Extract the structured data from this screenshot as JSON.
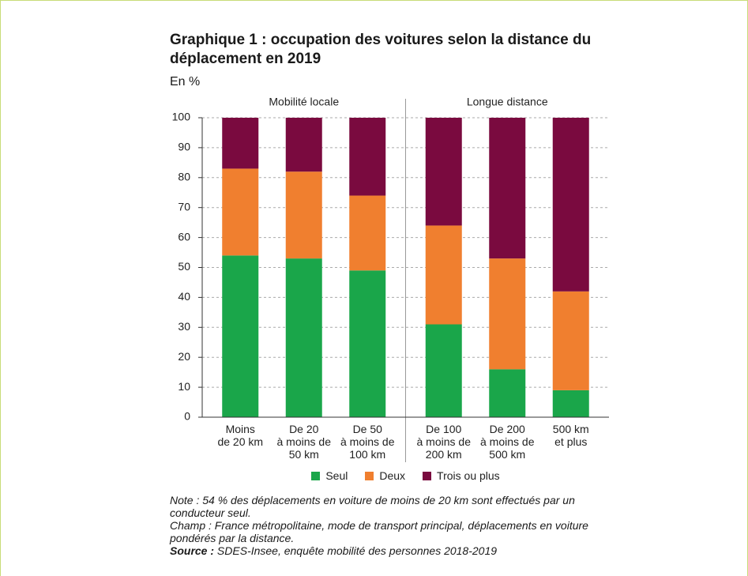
{
  "chart_data": {
    "type": "stacked_bar",
    "title": "Graphique 1 : occupation des voitures selon la distance du déplacement en 2019",
    "subtitle": "En %",
    "groups": [
      {
        "name": "Mobilité locale",
        "size": 3
      },
      {
        "name": "Longue distance",
        "size": 3
      }
    ],
    "categories": [
      "Moins\nde 20 km",
      "De 20\nà moins de\n50 km",
      "De 50\nà moins de\n100 km",
      "De 100\nà moins de\n200 km",
      "De 200\nà moins de\n500 km",
      "500 km\net plus"
    ],
    "series": [
      {
        "name": "Seul",
        "color": "#1aa64a",
        "values": [
          54,
          53,
          49,
          31,
          16,
          9
        ]
      },
      {
        "name": "Deux",
        "color": "#f07f2f",
        "values": [
          29,
          29,
          25,
          33,
          37,
          33
        ]
      },
      {
        "name": "Trois ou plus",
        "color": "#7a0a3f",
        "values": [
          17,
          18,
          26,
          36,
          47,
          58
        ]
      }
    ],
    "ylim": [
      0,
      100
    ],
    "yticks": [
      0,
      10,
      20,
      30,
      40,
      50,
      60,
      70,
      80,
      90,
      100
    ],
    "grid": true,
    "notes": [
      "Note : 54 % des déplacements en voiture de moins de 20 km sont effectués par un conducteur seul.",
      "Champ : France métropolitaine, mode de transport principal, déplacements en voiture pondérés par la distance."
    ],
    "source_label": "Source :",
    "source": "SDES-Insee, enquête mobilité des personnes 2018-2019"
  }
}
